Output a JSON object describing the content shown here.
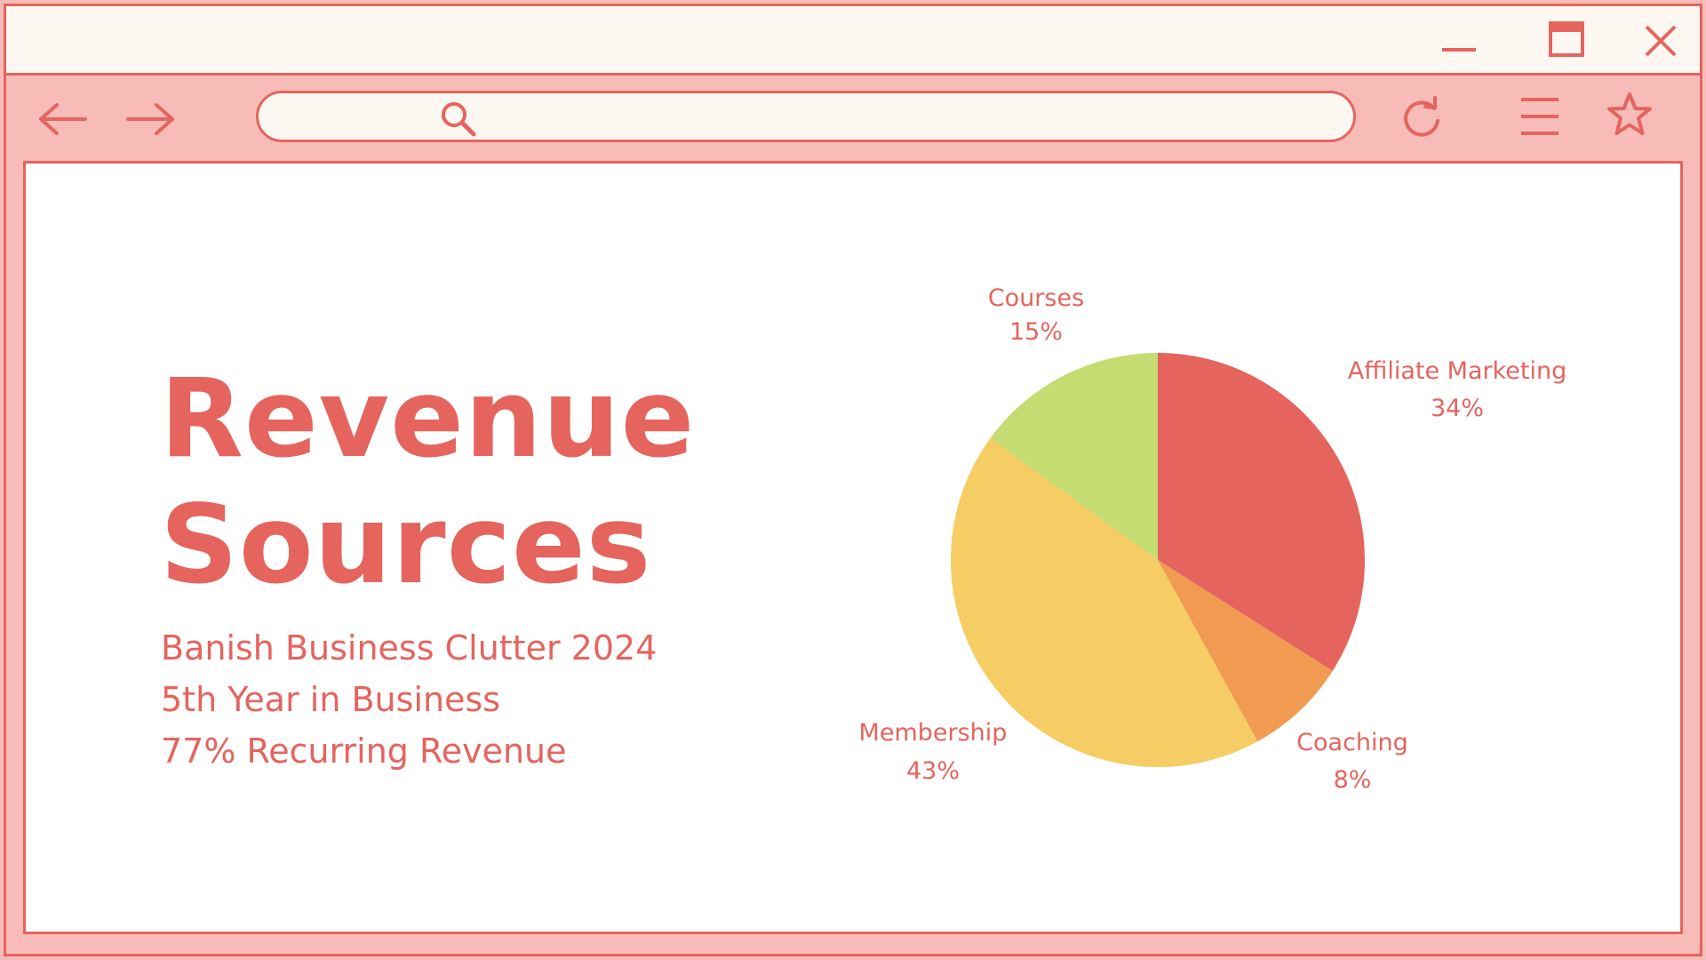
{
  "window": {
    "controls": [
      "minimize-icon",
      "maximize-icon",
      "close-icon"
    ]
  },
  "toolbar": {
    "icons": [
      "back-arrow-icon",
      "forward-arrow-icon",
      "search-icon",
      "refresh-icon",
      "menu-icon",
      "star-icon"
    ],
    "url_value": ""
  },
  "page": {
    "title_line1": "Revenue",
    "title_line2": "Sources",
    "subtitle_lines": [
      "Banish Business Clutter 2024",
      "5th Year in Business",
      "77% Recurring Revenue"
    ]
  },
  "colors": {
    "accent": "#e5645e",
    "frame": "#f7bcb8",
    "titlebar": "#fdf7f1",
    "content_bg": "#ffffff"
  },
  "chart_data": {
    "type": "pie",
    "title": "",
    "slices": [
      {
        "label": "Affiliate Marketing",
        "value": 34,
        "display": "34%",
        "color": "#e5645e"
      },
      {
        "label": "Coaching",
        "value": 8,
        "display": "8%",
        "color": "#f19a52"
      },
      {
        "label": "Membership",
        "value": 43,
        "display": "43%",
        "color": "#f5cd64"
      },
      {
        "label": "Courses",
        "value": 15,
        "display": "15%",
        "color": "#c4dc72"
      }
    ],
    "start_angle": "12 o'clock",
    "direction": "clockwise",
    "legend": "none (labels beside slices)"
  }
}
